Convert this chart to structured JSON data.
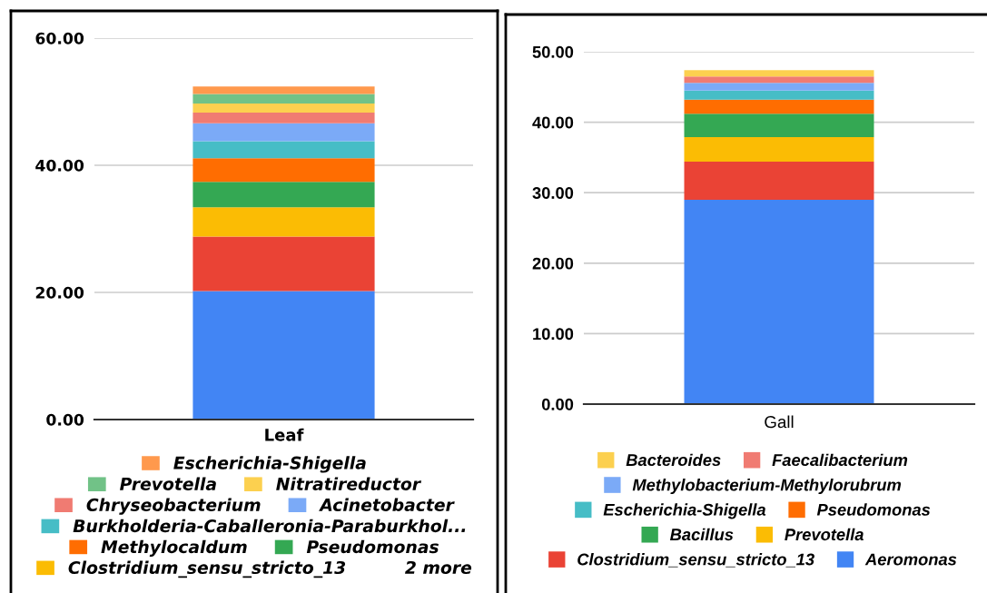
{
  "chart_data": [
    {
      "type": "bar",
      "stacked": true,
      "categories": [
        "Leaf"
      ],
      "series": [
        {
          "color": "#4285f4",
          "values": [
            20.2
          ]
        },
        {
          "color": "#ea4335",
          "values": [
            8.6
          ]
        },
        {
          "name": "Clostridium_sensu_stricto_13",
          "color": "#fbbc04",
          "values": [
            4.6
          ]
        },
        {
          "name": "Pseudomonas",
          "color": "#34a853",
          "values": [
            4.0
          ]
        },
        {
          "name": "Methylocaldum",
          "color": "#ff6d01",
          "values": [
            3.7
          ]
        },
        {
          "name": "Burkholderia-Caballeronia-Paraburkhol...",
          "color": "#46bdc6",
          "values": [
            2.7
          ]
        },
        {
          "name": "Acinetobacter",
          "color": "#7baaf7",
          "values": [
            2.8
          ]
        },
        {
          "name": "Chryseobacterium",
          "color": "#f07b72",
          "values": [
            1.7
          ]
        },
        {
          "name": "Nitratireductor",
          "color": "#fcd04f",
          "values": [
            1.4
          ]
        },
        {
          "name": "Prevotella",
          "color": "#71c287",
          "values": [
            1.5
          ]
        },
        {
          "name": "Escherichia-Shigella",
          "color": "#ff994d",
          "values": [
            1.2
          ]
        }
      ],
      "ylim": [
        0,
        60
      ],
      "yticks": [
        {
          "value": 0,
          "label": "0.00"
        },
        {
          "value": 20,
          "label": "20.00"
        },
        {
          "value": 40,
          "label": "40.00"
        },
        {
          "value": 60,
          "label": "60.00"
        }
      ],
      "grid": "y",
      "legend": "bottom",
      "annotations": [
        "2 more"
      ]
    },
    {
      "type": "bar",
      "stacked": true,
      "categories": [
        "Gall"
      ],
      "series": [
        {
          "name": "Aeromonas",
          "color": "#4285f4",
          "values": [
            29.0
          ]
        },
        {
          "name": "Clostridium_sensu_stricto_13",
          "color": "#ea4335",
          "values": [
            5.4
          ]
        },
        {
          "name": "Prevotella",
          "color": "#fbbc04",
          "values": [
            3.5
          ]
        },
        {
          "name": "Bacillus",
          "color": "#34a853",
          "values": [
            3.3
          ]
        },
        {
          "name": "Pseudomonas",
          "color": "#ff6d01",
          "values": [
            2.0
          ]
        },
        {
          "name": "Escherichia-Shigella",
          "color": "#46bdc6",
          "values": [
            1.3
          ]
        },
        {
          "name": "Methylobacterium-Methylorubrum",
          "color": "#7baaf7",
          "values": [
            1.1
          ]
        },
        {
          "name": "Faecalibacterium",
          "color": "#f07b72",
          "values": [
            0.9
          ]
        },
        {
          "name": "Bacteroides",
          "color": "#fcd04f",
          "values": [
            0.9
          ]
        }
      ],
      "ylim": [
        0,
        50
      ],
      "yticks": [
        {
          "value": 0,
          "label": "0.00"
        },
        {
          "value": 10,
          "label": "10.00"
        },
        {
          "value": 20,
          "label": "20.00"
        },
        {
          "value": 30,
          "label": "30.00"
        },
        {
          "value": 40,
          "label": "40.00"
        },
        {
          "value": 50,
          "label": "50.00"
        }
      ],
      "grid": "y",
      "legend": "bottom"
    }
  ]
}
